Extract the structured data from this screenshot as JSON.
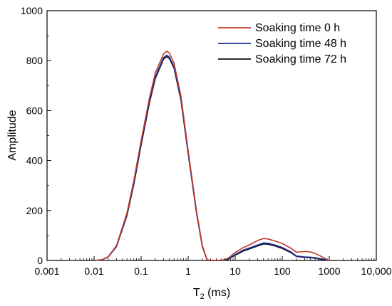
{
  "chart_data": {
    "type": "line",
    "title": "",
    "xlabel": {
      "main": "T",
      "sub": "2",
      "unit": " (ms)"
    },
    "ylabel": "Amplitude",
    "x_scale": "log",
    "xlim": [
      0.001,
      10000
    ],
    "ylim": [
      0,
      1000
    ],
    "x_ticks": [
      {
        "value": 0.001,
        "label": "0.001"
      },
      {
        "value": 0.01,
        "label": "0.01"
      },
      {
        "value": 0.1,
        "label": "0.1"
      },
      {
        "value": 1,
        "label": "1"
      },
      {
        "value": 10,
        "label": "10"
      },
      {
        "value": 100,
        "label": "100"
      },
      {
        "value": 1000,
        "label": "1000"
      },
      {
        "value": 10000,
        "label": "10,000"
      }
    ],
    "y_ticks": [
      {
        "value": 0,
        "label": "0"
      },
      {
        "value": 200,
        "label": "200"
      },
      {
        "value": 400,
        "label": "400"
      },
      {
        "value": 600,
        "label": "600"
      },
      {
        "value": 800,
        "label": "800"
      },
      {
        "value": 1000,
        "label": "1000"
      }
    ],
    "grid": false,
    "legend_position": "top-right",
    "series": [
      {
        "name": "Soaking time  0 h",
        "color": "#c0392b",
        "points": [
          [
            0.01,
            0
          ],
          [
            0.015,
            3
          ],
          [
            0.02,
            15
          ],
          [
            0.03,
            60
          ],
          [
            0.05,
            190
          ],
          [
            0.07,
            320
          ],
          [
            0.1,
            480
          ],
          [
            0.15,
            650
          ],
          [
            0.2,
            750
          ],
          [
            0.3,
            827
          ],
          [
            0.35,
            838
          ],
          [
            0.4,
            830
          ],
          [
            0.5,
            790
          ],
          [
            0.7,
            660
          ],
          [
            1,
            440
          ],
          [
            1.5,
            200
          ],
          [
            2,
            60
          ],
          [
            2.5,
            5
          ],
          [
            2.8,
            0
          ],
          [
            5,
            0
          ],
          [
            7,
            8
          ],
          [
            10,
            32
          ],
          [
            15,
            52
          ],
          [
            20,
            62
          ],
          [
            30,
            80
          ],
          [
            40,
            88
          ],
          [
            50,
            86
          ],
          [
            70,
            78
          ],
          [
            100,
            68
          ],
          [
            150,
            50
          ],
          [
            200,
            33
          ],
          [
            300,
            36
          ],
          [
            400,
            34
          ],
          [
            500,
            28
          ],
          [
            700,
            15
          ],
          [
            900,
            2
          ],
          [
            1000,
            0
          ]
        ]
      },
      {
        "name": "Soaking time 48 h",
        "color": "#1f2f9c",
        "points": [
          [
            0.01,
            0
          ],
          [
            0.015,
            3
          ],
          [
            0.02,
            15
          ],
          [
            0.03,
            58
          ],
          [
            0.05,
            185
          ],
          [
            0.07,
            312
          ],
          [
            0.1,
            470
          ],
          [
            0.15,
            638
          ],
          [
            0.2,
            735
          ],
          [
            0.3,
            812
          ],
          [
            0.35,
            822
          ],
          [
            0.4,
            814
          ],
          [
            0.5,
            775
          ],
          [
            0.7,
            648
          ],
          [
            1,
            432
          ],
          [
            1.5,
            195
          ],
          [
            2,
            58
          ],
          [
            2.5,
            5
          ],
          [
            2.7,
            0
          ],
          [
            5,
            0
          ],
          [
            7,
            5
          ],
          [
            10,
            24
          ],
          [
            15,
            42
          ],
          [
            20,
            50
          ],
          [
            30,
            62
          ],
          [
            40,
            70
          ],
          [
            50,
            69
          ],
          [
            70,
            62
          ],
          [
            100,
            52
          ],
          [
            150,
            35
          ],
          [
            200,
            18
          ],
          [
            300,
            14
          ],
          [
            400,
            13
          ],
          [
            500,
            11
          ],
          [
            700,
            6
          ],
          [
            900,
            0
          ]
        ]
      },
      {
        "name": "Soaking time 72 h",
        "color": "#111111",
        "points": [
          [
            0.01,
            0
          ],
          [
            0.015,
            3
          ],
          [
            0.02,
            14
          ],
          [
            0.03,
            56
          ],
          [
            0.05,
            180
          ],
          [
            0.07,
            305
          ],
          [
            0.1,
            462
          ],
          [
            0.15,
            630
          ],
          [
            0.2,
            728
          ],
          [
            0.3,
            806
          ],
          [
            0.35,
            816
          ],
          [
            0.4,
            808
          ],
          [
            0.5,
            770
          ],
          [
            0.7,
            643
          ],
          [
            1,
            428
          ],
          [
            1.5,
            192
          ],
          [
            2,
            56
          ],
          [
            2.5,
            4
          ],
          [
            2.7,
            0
          ],
          [
            5,
            0
          ],
          [
            7,
            4
          ],
          [
            10,
            21
          ],
          [
            15,
            38
          ],
          [
            20,
            46
          ],
          [
            30,
            58
          ],
          [
            40,
            66
          ],
          [
            50,
            65
          ],
          [
            70,
            58
          ],
          [
            100,
            48
          ],
          [
            150,
            32
          ],
          [
            200,
            16
          ],
          [
            300,
            12
          ],
          [
            400,
            11
          ],
          [
            500,
            9
          ],
          [
            700,
            4
          ],
          [
            900,
            0
          ]
        ]
      }
    ]
  }
}
